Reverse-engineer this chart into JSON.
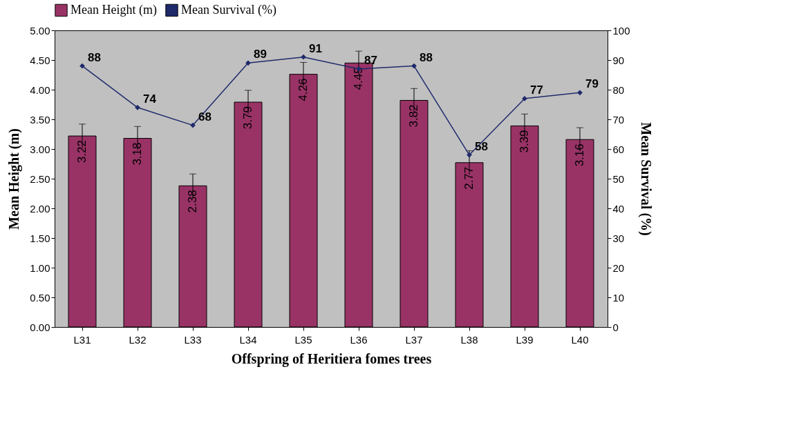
{
  "chart_data": {
    "type": "bar",
    "xlabel": "Offspring of Heritiera fomes trees",
    "ylabel": "Mean Height (m)",
    "y2label": "Mean Survival (%)",
    "categories": [
      "L31",
      "L32",
      "L33",
      "L34",
      "L35",
      "L36",
      "L37",
      "L38",
      "L39",
      "L40"
    ],
    "series": [
      {
        "name": "Mean Height (m)",
        "color": "#993366",
        "values": [
          3.22,
          3.18,
          2.38,
          3.79,
          4.26,
          4.45,
          3.82,
          2.77,
          3.39,
          3.16
        ],
        "errors": [
          0.2,
          0.2,
          0.2,
          0.2,
          0.2,
          0.2,
          0.2,
          0.2,
          0.2,
          0.2
        ]
      },
      {
        "name": "Mean Survival (%)",
        "type": "line",
        "axis": "y2",
        "color": "#1f2a6b",
        "marker": "diamond",
        "values": [
          88,
          74,
          68,
          89,
          91,
          87,
          88,
          58,
          77,
          79
        ]
      }
    ],
    "ylim": [
      0,
      5
    ],
    "yticks": [
      {
        "value": 0,
        "label": "0.00"
      },
      {
        "value": 0.5,
        "label": "0.50"
      },
      {
        "value": 1,
        "label": "1.00"
      },
      {
        "value": 1.5,
        "label": "1.50"
      },
      {
        "value": 2,
        "label": "2.00"
      },
      {
        "value": 2.5,
        "label": "2.50"
      },
      {
        "value": 3,
        "label": "3.00"
      },
      {
        "value": 3.5,
        "label": "3.50"
      },
      {
        "value": 4,
        "label": "4.00"
      },
      {
        "value": 4.5,
        "label": "4.50"
      },
      {
        "value": 5,
        "label": "5.00"
      }
    ],
    "y2lim": [
      0,
      100
    ],
    "y2ticks": [
      0,
      10,
      20,
      30,
      40,
      50,
      60,
      70,
      80,
      90,
      100
    ],
    "data_labels": true,
    "legend": "top",
    "grid": false
  }
}
